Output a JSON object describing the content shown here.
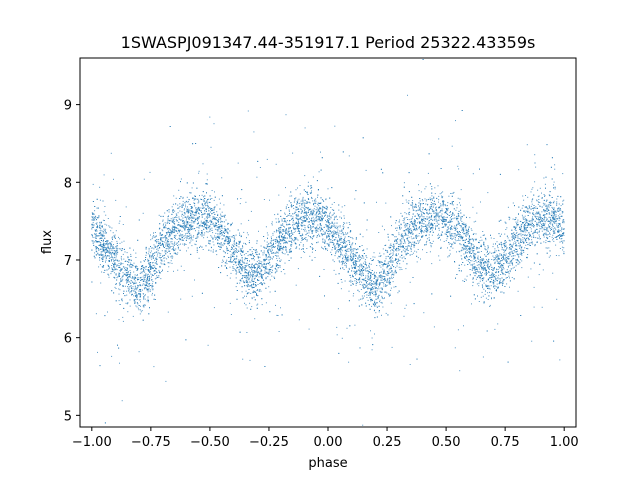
{
  "chart_data": {
    "type": "scatter",
    "title": "1SWASPJ091347.44-351917.1 Period 25322.43359s",
    "xlabel": "phase",
    "ylabel": "flux",
    "xlim": [
      -1.05,
      1.05
    ],
    "ylim": [
      4.85,
      9.6
    ],
    "xticks": [
      -1.0,
      -0.75,
      -0.5,
      -0.25,
      0.0,
      0.25,
      0.5,
      0.75,
      1.0
    ],
    "xtick_labels": [
      "−1.00",
      "−0.75",
      "−0.50",
      "−0.25",
      "0.00",
      "0.25",
      "0.50",
      "0.75",
      "1.00"
    ],
    "yticks": [
      5,
      6,
      7,
      8,
      9
    ],
    "ytick_labels": [
      "5",
      "6",
      "7",
      "8",
      "9"
    ],
    "grid": false,
    "legend": "none",
    "marker_color": "#1f77b4",
    "series": [
      {
        "x": [
          -1.0,
          -0.95,
          -0.9,
          -0.85,
          -0.8,
          -0.75,
          -0.7,
          -0.65,
          -0.6,
          -0.55,
          -0.5,
          -0.45,
          -0.4,
          -0.35,
          -0.3,
          -0.25,
          -0.2,
          -0.15,
          -0.1,
          -0.05,
          0.0,
          0.05,
          0.1,
          0.15,
          0.2,
          0.25,
          0.3,
          0.35,
          0.4,
          0.45,
          0.5,
          0.55,
          0.6,
          0.65,
          0.7,
          0.75,
          0.8,
          0.85,
          0.9,
          0.95,
          1.0
        ],
        "y": [
          7.4,
          7.2,
          7.0,
          6.8,
          6.6,
          6.9,
          7.2,
          7.4,
          7.5,
          7.55,
          7.5,
          7.35,
          7.1,
          6.9,
          6.8,
          7.0,
          7.25,
          7.45,
          7.55,
          7.55,
          7.4,
          7.2,
          7.0,
          6.8,
          6.6,
          6.9,
          7.2,
          7.4,
          7.5,
          7.55,
          7.5,
          7.35,
          7.1,
          6.9,
          6.8,
          7.0,
          7.25,
          7.45,
          7.55,
          7.55,
          7.4
        ]
      }
    ]
  }
}
